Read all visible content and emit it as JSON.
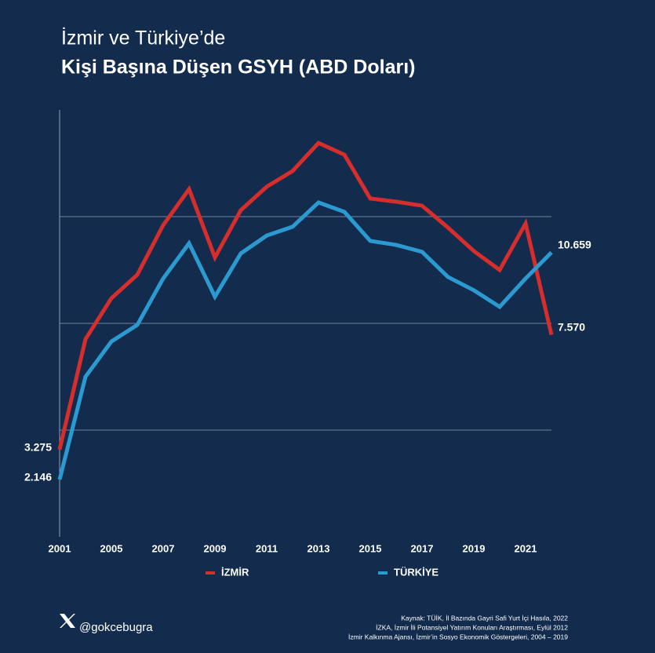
{
  "chart_data": {
    "type": "line",
    "title": "İzmir ve Türkiye’de",
    "subtitle": "Kişi Başına Düşen GSYH (ABD Doları)",
    "categories": [
      "2001",
      null,
      "2005",
      null,
      "2007",
      null,
      "2009",
      null,
      "2011",
      null,
      "2013",
      null,
      "2015",
      null,
      "2017",
      null,
      "2019",
      null,
      "2021",
      null
    ],
    "series": [
      {
        "name": "İZMİR",
        "color": "#d62d2d",
        "values": [
          3275,
          7410,
          8940,
          9820,
          11680,
          13030,
          10470,
          12240,
          13120,
          13710,
          14760,
          14320,
          12680,
          12560,
          12410,
          11590,
          10710,
          10000,
          11740,
          7570
        ],
        "value_labels": [
          "3.275",
          null,
          null,
          null,
          null,
          null,
          null,
          null,
          null,
          null,
          null,
          null,
          null,
          null,
          null,
          null,
          null,
          null,
          null,
          "7.570"
        ]
      },
      {
        "name": "TÜRKİYE",
        "color": "#2b9ad0",
        "values": [
          2146,
          6000,
          7320,
          7940,
          9680,
          11000,
          9000,
          10620,
          11290,
          11620,
          12530,
          12180,
          11090,
          10940,
          10680,
          9740,
          9240,
          8620,
          9680,
          10659
        ],
        "value_labels": [
          "2.146",
          null,
          null,
          null,
          null,
          null,
          null,
          null,
          null,
          null,
          null,
          null,
          null,
          null,
          null,
          null,
          null,
          null,
          null,
          "10.659"
        ]
      }
    ],
    "ylim": [
      0,
      16000
    ],
    "yticks": [
      4000,
      8000,
      12000
    ],
    "grid": true
  },
  "footer": {
    "handle": "@gokcebugra",
    "source": [
      "Kaynak: TÜİK, İl Bazında Gayri Safi Yurt İçi Hasıla, 2022",
      "İZKA, İzmir İli Potansiyel Yatırım Konuları Araştırması, Eylül 2012",
      "İzmir Kalkınma Ajansı, İzmir’in Sosyo Ekonomik Göstergeleri, 2004 – 2019"
    ]
  }
}
